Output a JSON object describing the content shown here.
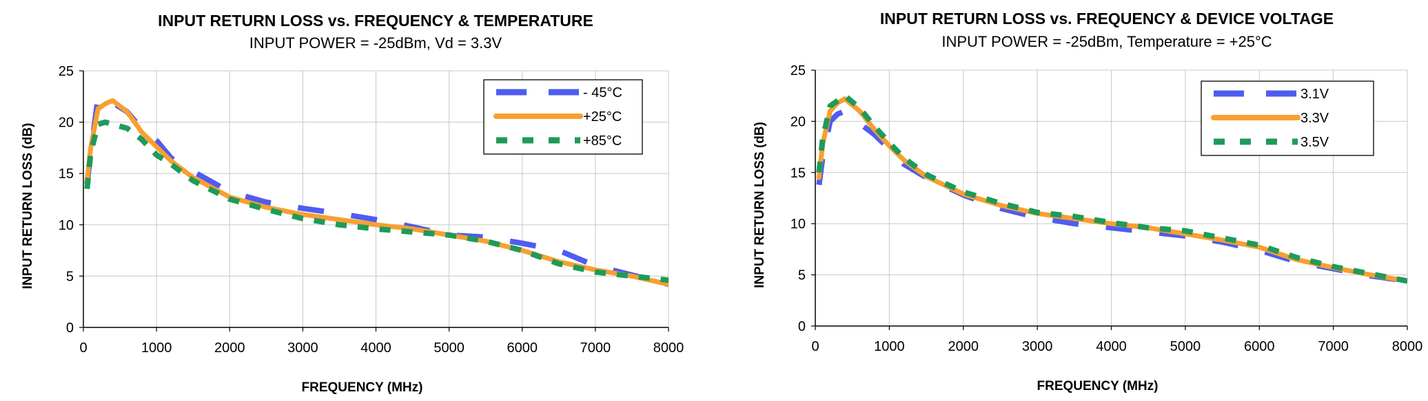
{
  "chart_data": [
    {
      "type": "line",
      "title": "INPUT RETURN LOSS  vs. FREQUENCY & TEMPERATURE",
      "subtitle": "INPUT POWER = -25dBm, Vd = 3.3V",
      "xlabel": "FREQUENCY (MHz)",
      "ylabel": "INPUT RETURN LOSS (dB)",
      "xlim": [
        0,
        8000
      ],
      "ylim": [
        0,
        25
      ],
      "xticks": [
        0,
        1000,
        2000,
        3000,
        4000,
        5000,
        6000,
        7000,
        8000
      ],
      "yticks": [
        0,
        5,
        10,
        15,
        20,
        25
      ],
      "grid": true,
      "legend_position": "top-right",
      "series": [
        {
          "name": "- 45°C",
          "color": "#4f5cf0",
          "style": "dashed",
          "x": [
            50,
            100,
            200,
            300,
            400,
            600,
            800,
            1000,
            1200,
            1500,
            2000,
            2500,
            3000,
            3500,
            4000,
            4500,
            5000,
            5500,
            6000,
            6500,
            7000,
            7500,
            8000
          ],
          "y": [
            14.0,
            17.0,
            22.4,
            22.4,
            21.9,
            21.0,
            19.3,
            18.2,
            16.5,
            15.2,
            13.2,
            12.2,
            11.6,
            11.1,
            10.5,
            9.8,
            9.0,
            8.8,
            8.2,
            7.5,
            6.0,
            5.1,
            4.2
          ]
        },
        {
          "name": "+25°C",
          "color": "#f7a030",
          "style": "solid",
          "x": [
            50,
            100,
            200,
            300,
            400,
            600,
            800,
            1000,
            1200,
            1500,
            2000,
            2500,
            3000,
            3500,
            4000,
            4500,
            5000,
            5500,
            6000,
            6500,
            7000,
            7500,
            8000
          ],
          "y": [
            14.3,
            17.5,
            21.3,
            21.8,
            22.1,
            21.0,
            19.0,
            17.6,
            16.2,
            14.6,
            12.7,
            11.7,
            11.0,
            10.5,
            10.0,
            9.6,
            9.0,
            8.4,
            7.5,
            6.4,
            5.6,
            5.0,
            4.2
          ]
        },
        {
          "name": "+85°C",
          "color": "#1f9a5a",
          "style": "dotted",
          "x": [
            50,
            100,
            200,
            300,
            400,
            600,
            800,
            1000,
            1200,
            1500,
            2000,
            2500,
            3000,
            3500,
            4000,
            4500,
            5000,
            5500,
            6000,
            6500,
            7000,
            7500,
            8000
          ],
          "y": [
            13.5,
            17.0,
            19.8,
            20.0,
            19.8,
            19.4,
            18.3,
            16.8,
            15.9,
            14.3,
            12.5,
            11.5,
            10.6,
            10.0,
            9.6,
            9.3,
            9.0,
            8.4,
            7.5,
            6.2,
            5.4,
            5.0,
            4.6
          ]
        }
      ]
    },
    {
      "type": "line",
      "title": "INPUT RETURN LOSS  vs.  FREQUENCY & DEVICE VOLTAGE",
      "subtitle": "INPUT POWER = -25dBm, Temperature = +25°C",
      "xlabel": "FREQUENCY (MHz)",
      "ylabel": "INPUT RETURN LOSS (dB)",
      "xlim": [
        0,
        8000
      ],
      "ylim": [
        0,
        25
      ],
      "xticks": [
        0,
        1000,
        2000,
        3000,
        4000,
        5000,
        6000,
        7000,
        8000
      ],
      "yticks": [
        0,
        5,
        10,
        15,
        20,
        25
      ],
      "grid": true,
      "legend_position": "top-right",
      "series": [
        {
          "name": "3.1V",
          "color": "#4f5cf0",
          "style": "dashed",
          "x": [
            50,
            100,
            200,
            300,
            400,
            600,
            800,
            1000,
            1200,
            1500,
            2000,
            2500,
            3000,
            3500,
            4000,
            4500,
            5000,
            5500,
            6000,
            6500,
            7000,
            7500,
            8000
          ],
          "y": [
            13.8,
            16.5,
            20.0,
            20.7,
            21.0,
            19.8,
            18.7,
            17.3,
            15.8,
            14.5,
            12.8,
            11.5,
            10.6,
            10.0,
            9.6,
            9.2,
            8.8,
            8.2,
            7.4,
            6.3,
            5.6,
            4.9,
            4.4
          ]
        },
        {
          "name": "3.3V",
          "color": "#f7a030",
          "style": "solid",
          "x": [
            50,
            100,
            200,
            300,
            400,
            600,
            800,
            1000,
            1200,
            1500,
            2000,
            2500,
            3000,
            3500,
            4000,
            4500,
            5000,
            5500,
            6000,
            6500,
            7000,
            7500,
            8000
          ],
          "y": [
            14.5,
            17.8,
            21.0,
            21.8,
            22.2,
            21.0,
            19.2,
            17.6,
            16.2,
            14.6,
            12.9,
            11.8,
            11.0,
            10.5,
            10.0,
            9.6,
            9.0,
            8.4,
            7.7,
            6.5,
            5.7,
            5.0,
            4.4
          ]
        },
        {
          "name": "3.5V",
          "color": "#1f9a5a",
          "style": "dotted",
          "x": [
            50,
            100,
            200,
            300,
            400,
            600,
            800,
            1000,
            1200,
            1500,
            2000,
            2500,
            3000,
            3500,
            4000,
            4500,
            5000,
            5500,
            6000,
            6500,
            7000,
            7500,
            8000
          ],
          "y": [
            15.0,
            18.3,
            21.5,
            22.0,
            22.5,
            21.3,
            19.5,
            17.9,
            16.4,
            14.8,
            13.1,
            12.0,
            11.1,
            10.7,
            10.1,
            9.6,
            9.3,
            8.6,
            7.9,
            6.7,
            5.8,
            5.1,
            4.4
          ]
        }
      ]
    }
  ]
}
